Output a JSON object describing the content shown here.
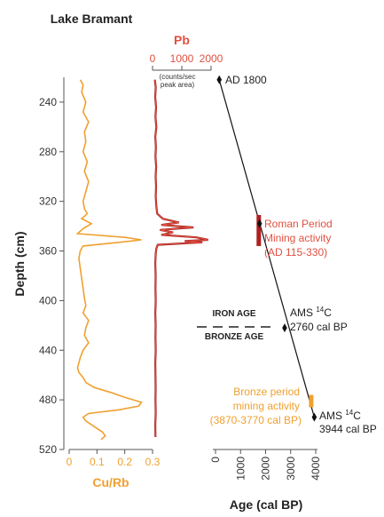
{
  "chart_data": {
    "type": "line",
    "title": "Lake Bramant",
    "depth_axis": {
      "label": "Depth (cm)",
      "range": [
        220,
        520
      ],
      "ticks": [
        240,
        280,
        320,
        360,
        400,
        440,
        480,
        520
      ],
      "inverted": true
    },
    "panels": [
      {
        "id": "cu_rb",
        "xlabel": "Cu/Rb",
        "xlim": [
          0,
          0.3
        ],
        "xticks": [
          0,
          0.1,
          0.2,
          0.3
        ],
        "xtick_labels": [
          "0",
          "0.1",
          "0.2",
          "0.3"
        ],
        "color": "#f0a030",
        "depths": [
          222,
          226,
          232,
          240,
          248,
          256,
          264,
          272,
          280,
          288,
          296,
          304,
          312,
          320,
          326,
          330,
          334,
          338,
          342,
          346,
          349,
          351,
          353,
          356,
          360,
          366,
          374,
          382,
          390,
          398,
          404,
          410,
          416,
          422,
          428,
          434,
          440,
          446,
          450,
          454,
          458,
          462,
          466,
          470,
          474,
          478,
          482,
          485,
          488,
          491,
          494,
          497,
          500,
          503,
          506,
          509,
          512
        ],
        "values": [
          0.04,
          0.05,
          0.045,
          0.06,
          0.05,
          0.07,
          0.055,
          0.06,
          0.05,
          0.065,
          0.055,
          0.07,
          0.06,
          0.05,
          0.055,
          0.065,
          0.045,
          0.08,
          0.05,
          0.03,
          0.2,
          0.26,
          0.18,
          0.05,
          0.04,
          0.035,
          0.04,
          0.045,
          0.05,
          0.055,
          0.06,
          0.05,
          0.07,
          0.06,
          0.055,
          0.07,
          0.05,
          0.04,
          0.035,
          0.03,
          0.035,
          0.05,
          0.06,
          0.09,
          0.15,
          0.2,
          0.26,
          0.25,
          0.18,
          0.07,
          0.05,
          0.06,
          0.08,
          0.1,
          0.12,
          0.13,
          0.115
        ]
      },
      {
        "id": "pb",
        "xlabel": "Pb",
        "xlabel_note": [
          "(counts/sec",
          "peak area)"
        ],
        "xlim": [
          0,
          2000
        ],
        "xticks": [
          0,
          1000,
          2000
        ],
        "xtick_labels": [
          "0",
          "1000",
          "2000"
        ],
        "color": "#e05040",
        "dark_color": "#9e1f1f",
        "depths": [
          222,
          228,
          236,
          244,
          252,
          260,
          268,
          276,
          284,
          292,
          300,
          308,
          316,
          324,
          330,
          334,
          337,
          339,
          341,
          343,
          345,
          347,
          349,
          351,
          352,
          353,
          355,
          358,
          362,
          370,
          380,
          390,
          400,
          410,
          420,
          430,
          440,
          450,
          460,
          470,
          480,
          490,
          500,
          510
        ],
        "values": [
          80,
          110,
          90,
          120,
          100,
          130,
          95,
          115,
          100,
          125,
          105,
          120,
          110,
          130,
          160,
          350,
          900,
          300,
          1400,
          250,
          700,
          300,
          1500,
          1900,
          1100,
          1700,
          180,
          130,
          110,
          95,
          105,
          100,
          110,
          95,
          105,
          100,
          110,
          95,
          100,
          105,
          100,
          110,
          95,
          100
        ]
      },
      {
        "id": "age",
        "xlabel": "Age (cal BP)",
        "xlim": [
          0,
          4000
        ],
        "xticks": [
          0,
          1000,
          2000,
          3000,
          4000
        ],
        "xtick_labels": [
          "0",
          "1000",
          "2000",
          "3000",
          "4000"
        ],
        "color": "#111111",
        "depths": [
          222,
          494
        ],
        "values": [
          150,
          3944
        ],
        "control_points": [
          {
            "depth": 222,
            "age": 150
          },
          {
            "depth": 338,
            "age": 1760
          },
          {
            "depth": 422,
            "age": 2760
          },
          {
            "depth": 494,
            "age": 3944
          }
        ]
      }
    ],
    "annotations": {
      "ad1800": "AD 1800",
      "roman_1": "Roman Period",
      "roman_2": "Mining activity",
      "roman_3": "(AD 115-330)",
      "ams1_a": "AMS",
      "ams1_b": "14",
      "ams1_c": "C",
      "ams1_d": "2760 cal BP",
      "iron_age": "IRON AGE",
      "bronze_age": "BRONZE AGE",
      "bronze_1": "Bronze period",
      "bronze_2": "mining activity",
      "bronze_3": "(3870-3770 cal BP)",
      "ams2_a": "AMS",
      "ams2_b": "14",
      "ams2_c": "C",
      "ams2_d": "3944 cal BP"
    },
    "highlight_bands": [
      {
        "name": "roman",
        "depth_range": [
          331,
          356
        ],
        "age_range": [
          1620,
          1835
        ],
        "color": "#b02020"
      },
      {
        "name": "bronze",
        "depth_range": [
          476,
          486
        ],
        "age_range": [
          3770,
          3870
        ],
        "color": "#f0a030"
      }
    ],
    "colors": {
      "red_text": "#e05040",
      "orange_text": "#f0a030",
      "axis": "#555555",
      "background": "#ffffff"
    }
  }
}
